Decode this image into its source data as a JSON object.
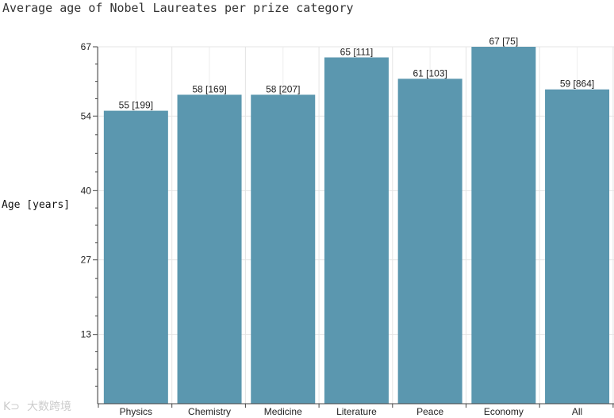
{
  "chart_data": {
    "type": "bar",
    "title": "Average age of Nobel Laureates per prize category",
    "xlabel": "",
    "ylabel": "Age [years]",
    "categories": [
      "Physics",
      "Chemistry",
      "Medicine",
      "Literature",
      "Peace",
      "Economy",
      "All"
    ],
    "values": [
      55,
      58,
      58,
      65,
      61,
      67,
      59
    ],
    "counts": [
      199,
      169,
      207,
      111,
      103,
      75,
      864
    ],
    "bar_labels": [
      "55 [199]",
      "58 [169]",
      "58 [207]",
      "65 [111]",
      "61 [103]",
      "67 [75]",
      "59 [864]"
    ],
    "ylim": [
      0,
      67
    ],
    "yticks": [
      13,
      27,
      40,
      54,
      67
    ],
    "grid": true,
    "bar_color": "#5b97af"
  },
  "watermark": {
    "text": "大数跨境"
  }
}
